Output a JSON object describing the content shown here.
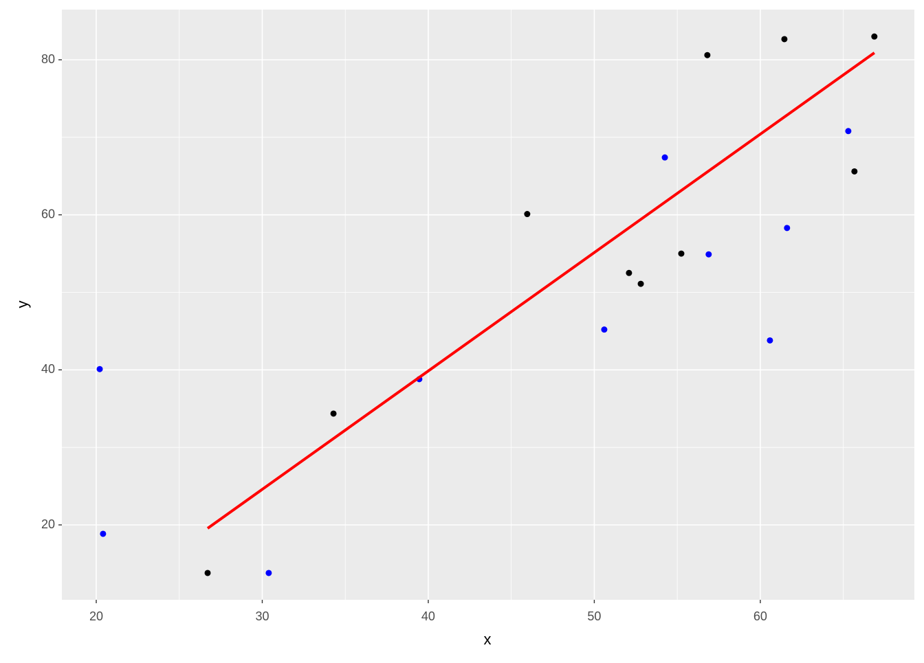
{
  "chart_data": {
    "type": "scatter",
    "x_label": "x",
    "y_label": "y",
    "xlim": [
      17.93,
      69.28
    ],
    "ylim": [
      10.34,
      86.47
    ],
    "xticks": [
      20,
      30,
      40,
      50,
      60
    ],
    "yticks": [
      20,
      40,
      60,
      80
    ],
    "grid": true,
    "background": "#ebebeb",
    "series": [
      {
        "type": "point",
        "color": "#000000",
        "x": [
          26.71,
          34.29,
          45.96,
          52.09,
          52.8,
          55.24,
          56.81,
          61.45,
          65.67,
          66.87
        ],
        "values": [
          13.8,
          34.36,
          60.1,
          52.5,
          51.1,
          55.0,
          80.6,
          82.66,
          65.6,
          83.0
        ]
      },
      {
        "type": "point",
        "color": "#0000ff",
        "x": [
          20.21,
          20.41,
          30.39,
          39.46,
          50.6,
          54.25,
          56.89,
          60.58,
          61.61,
          65.3
        ],
        "values": [
          40.1,
          18.85,
          13.8,
          38.8,
          45.2,
          67.4,
          54.9,
          43.8,
          58.3,
          70.8
        ]
      },
      {
        "type": "line",
        "color": "#ff0000",
        "x": [
          26.71,
          66.87
        ],
        "values": [
          19.56,
          80.9
        ]
      }
    ]
  }
}
